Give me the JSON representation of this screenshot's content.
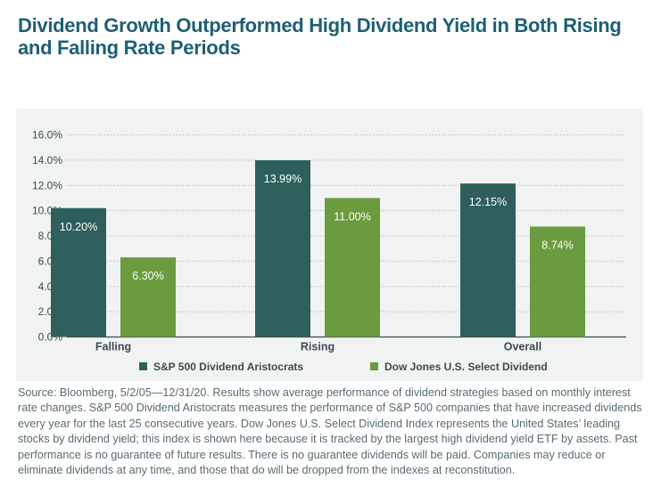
{
  "title": "Dividend Growth Outperformed High Dividend Yield in Both Rising and Falling Rate Periods",
  "source_note": "Source: Bloomberg, 5/2/05—12/31/20. Results show average performance of dividend strategies based on monthly interest rate changes. S&P 500 Dividend Aristocrats measures the performance of S&P 500 companies that have increased dividends every year for the last 25 consecutive years. Dow Jones U.S. Select Dividend Index represents the United States’ leading stocks by dividend yield; this index is shown here because it is tracked by the largest high dividend yield ETF by assets. Past performance is no guarantee of future results. There is no guarantee dividends will be paid. Companies may reduce or eliminate dividends at any time, and those that do will be dropped from the indexes at reconstitution.",
  "chart_data": {
    "type": "bar",
    "title": "",
    "xlabel": "",
    "ylabel": "",
    "categories": [
      "Falling",
      "Rising",
      "Overall"
    ],
    "series": [
      {
        "name": "S&P 500 Dividend Aristocrats",
        "color": "#2f5f5c",
        "values": [
          10.2,
          13.99,
          12.15
        ],
        "labels": [
          "10.20%",
          "13.99%",
          "12.15%"
        ]
      },
      {
        "name": "Dow Jones U.S. Select Dividend",
        "color": "#6a9c3f",
        "values": [
          6.3,
          11.0,
          8.74
        ],
        "labels": [
          "6.30%",
          "11.00%",
          "8.74%"
        ]
      }
    ],
    "ylim": [
      0,
      16
    ],
    "yticks": [
      "0.0%",
      "2.0%",
      "4.0%",
      "6.0%",
      "8.0%",
      "10.0%",
      "12.0%",
      "14.0%",
      "16.0%"
    ],
    "grid": true,
    "legend_position": "bottom"
  }
}
